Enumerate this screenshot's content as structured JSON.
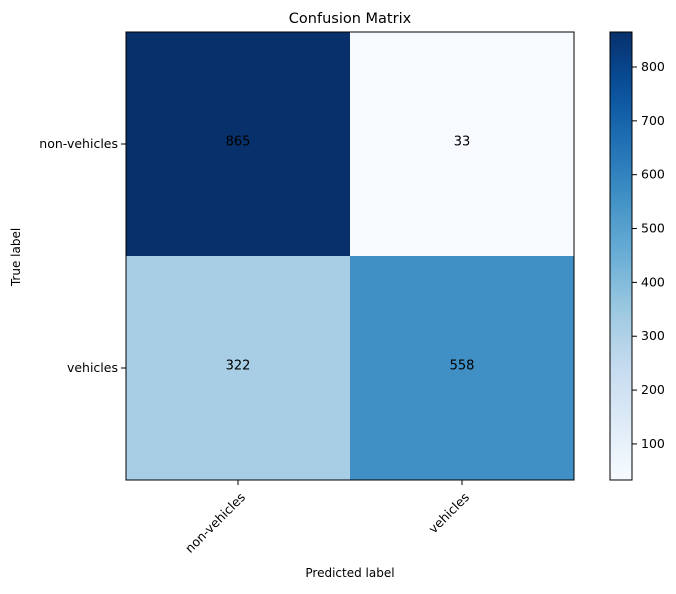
{
  "chart_data": {
    "type": "heatmap",
    "title": "Confusion Matrix",
    "xlabel": "Predicted label",
    "ylabel": "True label",
    "x_categories": [
      "non-vehicles",
      "vehicles"
    ],
    "y_categories": [
      "non-vehicles",
      "vehicles"
    ],
    "values": [
      [
        865,
        33
      ],
      [
        322,
        558
      ]
    ],
    "colormap": "Blues",
    "color_range": [
      33,
      865
    ],
    "colorbar_ticks": [
      100,
      200,
      300,
      400,
      500,
      600,
      700,
      800
    ],
    "text_color_threshold": 449,
    "colors": {
      "low": "#f7fbff",
      "high": "#08306b",
      "text_dark_cell": "#ffffff",
      "text_light_cell": "#000000"
    },
    "grid": false
  }
}
